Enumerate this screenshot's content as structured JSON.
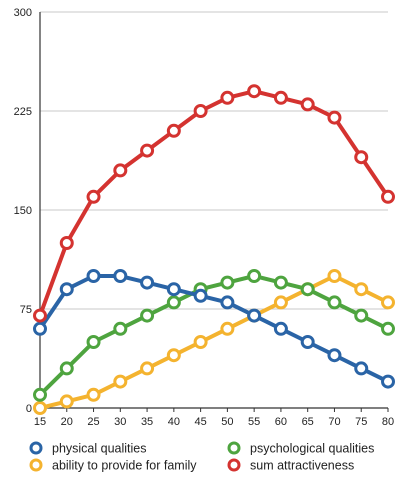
{
  "chart_data": {
    "type": "line",
    "title": "",
    "xlabel": "",
    "ylabel": "",
    "x": [
      15,
      20,
      25,
      30,
      35,
      40,
      45,
      50,
      55,
      60,
      65,
      70,
      75,
      80
    ],
    "x_tick_labels": [
      "15",
      "20",
      "25",
      "30",
      "35",
      "40",
      "45",
      "50",
      "55",
      "60",
      "65",
      "70",
      "75",
      "80"
    ],
    "ylim": [
      0,
      300
    ],
    "y_ticks": [
      0,
      75,
      150,
      225,
      300
    ],
    "y_tick_labels": [
      "0",
      "75",
      "150",
      "225",
      "300"
    ],
    "grid": "horizontal",
    "legend_position": "bottom",
    "series": [
      {
        "name": "physical qualities",
        "color": "#2a64a6",
        "values": [
          60,
          90,
          100,
          100,
          95,
          90,
          85,
          80,
          70,
          60,
          50,
          40,
          30,
          20
        ]
      },
      {
        "name": "ability to provide for family",
        "color": "#f4b32f",
        "values": [
          0,
          5,
          10,
          20,
          30,
          40,
          50,
          60,
          70,
          80,
          90,
          100,
          90,
          80
        ]
      },
      {
        "name": "psychological qualities",
        "color": "#4ea43f",
        "values": [
          10,
          30,
          50,
          60,
          70,
          80,
          90,
          95,
          100,
          95,
          90,
          80,
          70,
          60
        ]
      },
      {
        "name": "sum attractiveness",
        "color": "#d43330",
        "values": [
          70,
          125,
          160,
          180,
          195,
          210,
          225,
          235,
          240,
          235,
          230,
          220,
          190,
          160
        ]
      }
    ]
  }
}
